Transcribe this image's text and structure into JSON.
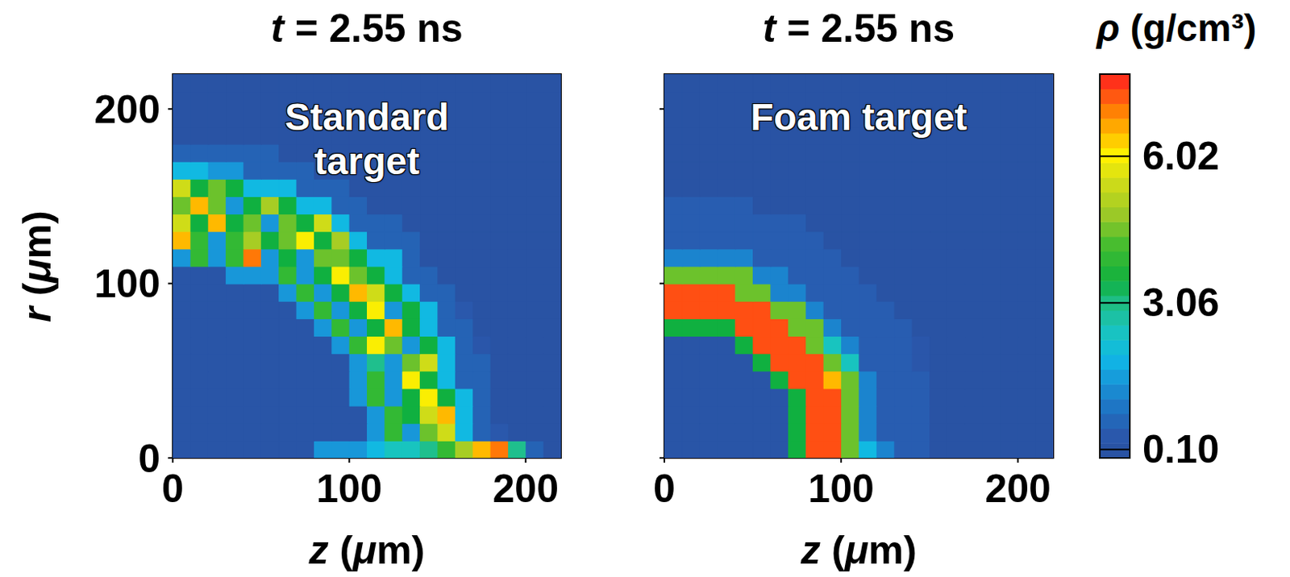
{
  "chart_data": [
    {
      "type": "heatmap",
      "title": "t = 2.55 ns",
      "annotation": "Standard target",
      "x_label": "z (μm)",
      "y_label": "r (μm)",
      "xlim": [
        0,
        220
      ],
      "ylim": [
        0,
        220
      ],
      "xticks": [
        0,
        100,
        200
      ],
      "yticks": [
        0,
        100,
        200
      ],
      "z_centers": [
        5,
        15,
        25,
        35,
        45,
        55,
        65,
        75,
        85,
        95,
        105,
        115,
        125,
        135,
        145,
        155,
        165,
        175,
        185,
        195,
        205,
        215
      ],
      "r_centers": [
        5,
        15,
        25,
        35,
        45,
        55,
        65,
        75,
        85,
        95,
        105,
        115,
        125,
        135,
        145,
        155,
        165,
        175,
        185,
        195,
        205,
        215
      ],
      "density": [
        [
          0.2,
          0.2,
          0.2,
          0.2,
          0.2,
          0.2,
          0.2,
          0.2,
          1.5,
          1.5,
          1.5,
          2.0,
          2.5,
          2.5,
          3.0,
          4.0,
          5.0,
          6.5,
          7.0,
          3.0,
          0.6,
          0.1
        ],
        [
          0.2,
          0.2,
          0.2,
          0.2,
          0.2,
          0.2,
          0.2,
          0.2,
          0.2,
          0.2,
          0.2,
          1.5,
          4.0,
          1.5,
          4.5,
          5.5,
          2.0,
          0.6,
          0.4,
          0.1,
          0.1,
          0.1
        ],
        [
          0.2,
          0.2,
          0.2,
          0.2,
          0.2,
          0.2,
          0.2,
          0.2,
          0.2,
          0.2,
          0.2,
          1.5,
          4.0,
          3.5,
          5.5,
          6.5,
          2.0,
          0.6,
          0.1,
          0.1,
          0.1,
          0.1
        ],
        [
          0.2,
          0.2,
          0.2,
          0.2,
          0.2,
          0.2,
          0.2,
          0.2,
          0.2,
          0.2,
          1.5,
          4.0,
          1.5,
          3.5,
          6.0,
          3.5,
          2.0,
          0.6,
          0.1,
          0.1,
          0.1,
          0.1
        ],
        [
          0.2,
          0.2,
          0.2,
          0.2,
          0.2,
          0.2,
          0.2,
          0.2,
          0.2,
          0.2,
          1.5,
          4.0,
          1.5,
          6.0,
          3.5,
          2.0,
          0.6,
          0.6,
          0.1,
          0.1,
          0.1,
          0.1
        ],
        [
          0.2,
          0.2,
          0.2,
          0.2,
          0.2,
          0.2,
          0.2,
          0.2,
          0.2,
          0.2,
          1.5,
          3.0,
          1.5,
          4.5,
          5.5,
          2.0,
          0.6,
          0.6,
          0.1,
          0.1,
          0.1,
          0.1
        ],
        [
          0.2,
          0.2,
          0.2,
          0.2,
          0.2,
          0.2,
          0.2,
          0.2,
          0.2,
          1.5,
          4.0,
          6.0,
          4.5,
          1.5,
          3.5,
          2.0,
          0.6,
          0.3,
          0.1,
          0.1,
          0.1,
          0.1
        ],
        [
          0.2,
          0.2,
          0.2,
          0.2,
          0.2,
          0.2,
          0.2,
          0.2,
          1.5,
          4.0,
          1.5,
          3.5,
          6.5,
          3.5,
          2.0,
          0.6,
          0.6,
          0.1,
          0.1,
          0.1,
          0.1,
          0.1
        ],
        [
          0.2,
          0.2,
          0.2,
          0.2,
          0.2,
          0.2,
          0.2,
          1.5,
          4.0,
          1.5,
          3.5,
          6.0,
          1.5,
          3.5,
          2.0,
          0.6,
          0.4,
          0.1,
          0.1,
          0.1,
          0.1,
          0.1
        ],
        [
          0.2,
          0.2,
          0.2,
          0.2,
          0.2,
          0.2,
          1.5,
          4.0,
          1.5,
          3.5,
          6.5,
          5.5,
          3.5,
          2.0,
          0.6,
          0.6,
          0.1,
          0.1,
          0.1,
          0.1,
          0.1,
          0.1
        ],
        [
          0.2,
          0.2,
          0.2,
          1.5,
          1.5,
          1.5,
          4.0,
          1.5,
          3.5,
          6.0,
          4.5,
          3.5,
          2.0,
          0.6,
          0.6,
          0.1,
          0.1,
          0.1,
          0.1,
          0.1,
          0.1,
          0.1
        ],
        [
          1.5,
          4.0,
          1.5,
          4.0,
          7.0,
          1.5,
          3.5,
          1.5,
          4.5,
          4.5,
          3.5,
          2.0,
          2.0,
          0.6,
          0.1,
          0.1,
          0.1,
          0.1,
          0.1,
          0.1,
          0.1,
          0.1
        ],
        [
          6.5,
          4.0,
          1.5,
          4.0,
          5.0,
          3.5,
          4.5,
          6.0,
          3.5,
          5.0,
          2.0,
          0.6,
          0.6,
          0.6,
          0.1,
          0.1,
          0.1,
          0.1,
          0.1,
          0.1,
          0.1,
          0.1
        ],
        [
          5.5,
          3.5,
          6.5,
          3.5,
          4.5,
          1.5,
          4.5,
          3.5,
          5.5,
          2.0,
          0.6,
          0.6,
          0.6,
          0.1,
          0.1,
          0.1,
          0.1,
          0.1,
          0.1,
          0.1,
          0.1,
          0.1
        ],
        [
          4.5,
          6.5,
          4.5,
          1.5,
          3.5,
          5.0,
          3.5,
          2.0,
          2.0,
          0.6,
          0.6,
          0.1,
          0.1,
          0.1,
          0.1,
          0.1,
          0.1,
          0.1,
          0.1,
          0.1,
          0.1,
          0.1
        ],
        [
          5.5,
          3.5,
          4.5,
          3.5,
          2.0,
          2.0,
          2.0,
          0.6,
          0.6,
          0.6,
          0.1,
          0.1,
          0.1,
          0.1,
          0.1,
          0.1,
          0.1,
          0.1,
          0.1,
          0.1,
          0.1,
          0.1
        ],
        [
          2.0,
          2.0,
          1.5,
          1.5,
          0.6,
          0.6,
          0.6,
          0.6,
          0.1,
          0.1,
          0.1,
          0.1,
          0.1,
          0.1,
          0.1,
          0.1,
          0.1,
          0.1,
          0.1,
          0.1,
          0.1,
          0.1
        ],
        [
          0.6,
          0.6,
          0.6,
          0.6,
          0.6,
          0.6,
          0.1,
          0.1,
          0.1,
          0.1,
          0.1,
          0.1,
          0.1,
          0.1,
          0.1,
          0.1,
          0.1,
          0.1,
          0.1,
          0.1,
          0.1,
          0.1
        ],
        [
          0.1,
          0.1,
          0.1,
          0.1,
          0.1,
          0.1,
          0.1,
          0.1,
          0.1,
          0.1,
          0.1,
          0.1,
          0.1,
          0.1,
          0.1,
          0.1,
          0.1,
          0.1,
          0.1,
          0.1,
          0.1,
          0.1
        ],
        [
          0.1,
          0.1,
          0.1,
          0.1,
          0.1,
          0.1,
          0.1,
          0.1,
          0.1,
          0.1,
          0.1,
          0.1,
          0.1,
          0.1,
          0.1,
          0.1,
          0.1,
          0.1,
          0.1,
          0.1,
          0.1,
          0.1
        ],
        [
          0.1,
          0.1,
          0.1,
          0.1,
          0.1,
          0.1,
          0.1,
          0.1,
          0.1,
          0.1,
          0.1,
          0.1,
          0.1,
          0.1,
          0.1,
          0.1,
          0.1,
          0.1,
          0.1,
          0.1,
          0.1,
          0.1
        ],
        [
          0.1,
          0.1,
          0.1,
          0.1,
          0.1,
          0.1,
          0.1,
          0.1,
          0.1,
          0.1,
          0.1,
          0.1,
          0.1,
          0.1,
          0.1,
          0.1,
          0.1,
          0.1,
          0.1,
          0.1,
          0.1,
          0.1
        ]
      ]
    },
    {
      "type": "heatmap",
      "title": "t = 2.55 ns",
      "annotation": "Foam target",
      "x_label": "z (μm)",
      "tick_labels": "x",
      "xlim": [
        0,
        220
      ],
      "ylim": [
        0,
        220
      ],
      "xticks": [
        0,
        100,
        200
      ],
      "yticks": [
        0,
        100,
        200
      ],
      "z_centers": [
        5,
        15,
        25,
        35,
        45,
        55,
        65,
        75,
        85,
        95,
        105,
        115,
        125,
        135,
        145,
        155,
        165,
        175,
        185,
        195,
        205,
        215
      ],
      "r_centers": [
        5,
        15,
        25,
        35,
        45,
        55,
        65,
        75,
        85,
        95,
        105,
        115,
        125,
        135,
        145,
        155,
        165,
        175,
        185,
        195,
        205,
        215
      ],
      "density": [
        [
          0.2,
          0.2,
          0.2,
          0.2,
          0.2,
          0.2,
          0.2,
          3.5,
          7.3,
          7.3,
          4.5,
          2.0,
          1.2,
          0.5,
          0.5,
          0.1,
          0.1,
          0.1,
          0.1,
          0.1,
          0.1,
          0.1
        ],
        [
          0.2,
          0.2,
          0.2,
          0.2,
          0.2,
          0.2,
          0.2,
          3.5,
          7.3,
          7.3,
          4.5,
          1.2,
          0.5,
          0.5,
          0.5,
          0.1,
          0.1,
          0.1,
          0.1,
          0.1,
          0.1,
          0.1
        ],
        [
          0.2,
          0.2,
          0.2,
          0.2,
          0.2,
          0.2,
          0.2,
          3.5,
          7.3,
          7.3,
          4.5,
          1.2,
          0.5,
          0.5,
          0.5,
          0.1,
          0.1,
          0.1,
          0.1,
          0.1,
          0.1,
          0.1
        ],
        [
          0.2,
          0.2,
          0.2,
          0.2,
          0.2,
          0.2,
          0.2,
          3.5,
          7.3,
          7.3,
          4.5,
          1.2,
          0.5,
          0.5,
          0.5,
          0.1,
          0.1,
          0.1,
          0.1,
          0.1,
          0.1,
          0.1
        ],
        [
          0.2,
          0.2,
          0.2,
          0.2,
          0.2,
          0.2,
          3.5,
          7.3,
          7.3,
          6.5,
          4.5,
          1.2,
          0.5,
          0.5,
          0.5,
          0.1,
          0.1,
          0.1,
          0.1,
          0.1,
          0.1,
          0.1
        ],
        [
          0.2,
          0.2,
          0.2,
          0.2,
          0.2,
          3.5,
          7.3,
          7.3,
          7.3,
          4.5,
          2.5,
          0.5,
          0.5,
          0.5,
          0.3,
          0.1,
          0.1,
          0.1,
          0.1,
          0.1,
          0.1,
          0.1
        ],
        [
          0.2,
          0.2,
          0.2,
          0.2,
          3.5,
          7.3,
          7.3,
          7.3,
          4.5,
          2.5,
          1.2,
          0.5,
          0.5,
          0.5,
          0.3,
          0.1,
          0.1,
          0.1,
          0.1,
          0.1,
          0.1,
          0.1
        ],
        [
          3.5,
          3.5,
          3.5,
          3.5,
          7.3,
          7.3,
          7.3,
          4.5,
          4.5,
          1.2,
          0.5,
          0.5,
          0.5,
          0.5,
          0.1,
          0.1,
          0.1,
          0.1,
          0.1,
          0.1,
          0.1,
          0.1
        ],
        [
          7.3,
          7.3,
          7.3,
          7.3,
          7.3,
          7.3,
          4.5,
          4.5,
          1.2,
          0.5,
          0.5,
          0.5,
          0.5,
          0.1,
          0.1,
          0.1,
          0.1,
          0.1,
          0.1,
          0.1,
          0.1,
          0.1
        ],
        [
          7.3,
          7.3,
          7.3,
          7.3,
          4.5,
          4.5,
          1.2,
          1.2,
          0.5,
          0.5,
          0.5,
          0.5,
          0.1,
          0.1,
          0.1,
          0.1,
          0.1,
          0.1,
          0.1,
          0.1,
          0.1,
          0.1
        ],
        [
          4.5,
          4.5,
          4.5,
          4.5,
          4.5,
          1.2,
          1.2,
          0.5,
          0.5,
          0.5,
          0.5,
          0.1,
          0.1,
          0.1,
          0.1,
          0.1,
          0.1,
          0.1,
          0.1,
          0.1,
          0.1,
          0.1
        ],
        [
          1.2,
          1.2,
          1.2,
          1.2,
          1.2,
          0.5,
          0.5,
          0.5,
          0.5,
          0.5,
          0.1,
          0.1,
          0.1,
          0.1,
          0.1,
          0.1,
          0.1,
          0.1,
          0.1,
          0.1,
          0.1,
          0.1
        ],
        [
          0.5,
          0.5,
          0.5,
          0.5,
          0.5,
          0.5,
          0.5,
          0.5,
          0.5,
          0.1,
          0.1,
          0.1,
          0.1,
          0.1,
          0.1,
          0.1,
          0.1,
          0.1,
          0.1,
          0.1,
          0.1,
          0.1
        ],
        [
          0.5,
          0.5,
          0.5,
          0.5,
          0.5,
          0.5,
          0.5,
          0.5,
          0.1,
          0.1,
          0.1,
          0.1,
          0.1,
          0.1,
          0.1,
          0.1,
          0.1,
          0.1,
          0.1,
          0.1,
          0.1,
          0.1
        ],
        [
          0.5,
          0.5,
          0.5,
          0.5,
          0.5,
          0.1,
          0.1,
          0.1,
          0.1,
          0.1,
          0.1,
          0.1,
          0.1,
          0.1,
          0.1,
          0.1,
          0.1,
          0.1,
          0.1,
          0.1,
          0.1,
          0.1
        ],
        [
          0.1,
          0.1,
          0.1,
          0.1,
          0.1,
          0.1,
          0.1,
          0.1,
          0.1,
          0.1,
          0.1,
          0.1,
          0.1,
          0.1,
          0.1,
          0.1,
          0.1,
          0.1,
          0.1,
          0.1,
          0.1,
          0.1
        ],
        [
          0.1,
          0.1,
          0.1,
          0.1,
          0.1,
          0.1,
          0.1,
          0.1,
          0.1,
          0.1,
          0.1,
          0.1,
          0.1,
          0.1,
          0.1,
          0.1,
          0.1,
          0.1,
          0.1,
          0.1,
          0.1,
          0.1
        ],
        [
          0.1,
          0.1,
          0.1,
          0.1,
          0.1,
          0.1,
          0.1,
          0.1,
          0.1,
          0.1,
          0.1,
          0.1,
          0.1,
          0.1,
          0.1,
          0.1,
          0.1,
          0.1,
          0.1,
          0.1,
          0.1,
          0.1
        ],
        [
          0.1,
          0.1,
          0.1,
          0.1,
          0.1,
          0.1,
          0.1,
          0.1,
          0.1,
          0.1,
          0.1,
          0.1,
          0.1,
          0.1,
          0.1,
          0.1,
          0.1,
          0.1,
          0.1,
          0.1,
          0.1,
          0.1
        ],
        [
          0.1,
          0.1,
          0.1,
          0.1,
          0.1,
          0.1,
          0.1,
          0.1,
          0.1,
          0.1,
          0.1,
          0.1,
          0.1,
          0.1,
          0.1,
          0.1,
          0.1,
          0.1,
          0.1,
          0.1,
          0.1,
          0.1
        ],
        [
          0.1,
          0.1,
          0.1,
          0.1,
          0.1,
          0.1,
          0.1,
          0.1,
          0.1,
          0.1,
          0.1,
          0.1,
          0.1,
          0.1,
          0.1,
          0.1,
          0.1,
          0.1,
          0.1,
          0.1,
          0.1,
          0.1
        ],
        [
          0.1,
          0.1,
          0.1,
          0.1,
          0.1,
          0.1,
          0.1,
          0.1,
          0.1,
          0.1,
          0.1,
          0.1,
          0.1,
          0.1,
          0.1,
          0.1,
          0.1,
          0.1,
          0.1,
          0.1,
          0.1,
          0.1
        ]
      ],
      "colorbar": {
        "label": "ρ (g/cm³)",
        "range": [
          -0.07,
          7.68
        ],
        "ticks": [
          {
            "value": 0.1,
            "label": "0.10"
          },
          {
            "value": 3.06,
            "label": "3.06"
          },
          {
            "value": 6.02,
            "label": "6.02"
          }
        ]
      }
    }
  ]
}
